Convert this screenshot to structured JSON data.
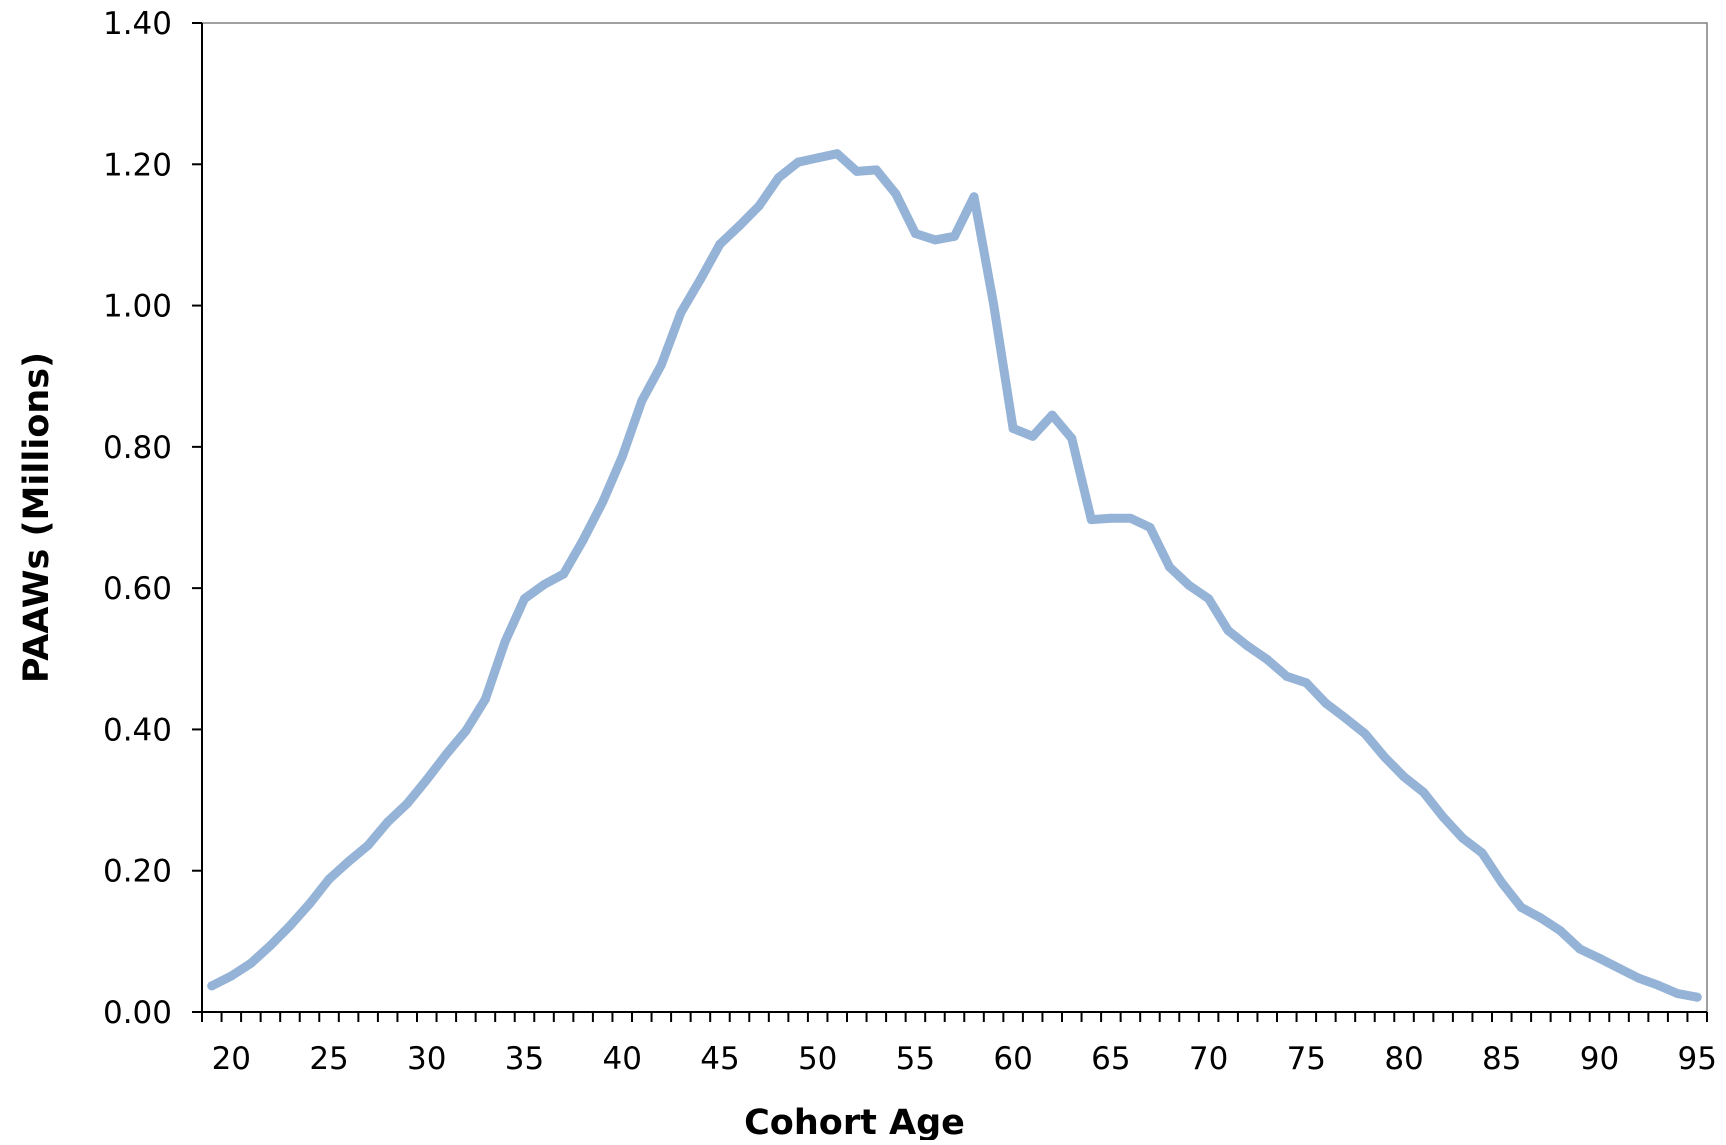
{
  "chart_data": {
    "type": "line",
    "title": "",
    "xlabel": "Cohort Age",
    "ylabel": "PAAWs (Millions)",
    "xlim": [
      18.5,
      95.5
    ],
    "ylim": [
      0,
      1.4
    ],
    "x_ticks": [
      20,
      25,
      30,
      35,
      40,
      45,
      50,
      55,
      60,
      65,
      70,
      75,
      80,
      85,
      90,
      95
    ],
    "y_ticks": [
      "0.00",
      "0.20",
      "0.40",
      "0.60",
      "0.80",
      "1.00",
      "1.20",
      "1.40"
    ],
    "grid": false,
    "legend": "none",
    "series": [
      {
        "color": "#95b3d7",
        "x": [
          19,
          20,
          21,
          22,
          23,
          24,
          25,
          26,
          27,
          28,
          29,
          30,
          31,
          32,
          33,
          34,
          35,
          36,
          37,
          38,
          39,
          40,
          41,
          42,
          43,
          44,
          45,
          46,
          47,
          48,
          49,
          50,
          51,
          52,
          53,
          54,
          55,
          56,
          57,
          58,
          59,
          60,
          61,
          62,
          63,
          64,
          65,
          66,
          67,
          68,
          69,
          70,
          71,
          72,
          73,
          74,
          75,
          76,
          77,
          78,
          79,
          80,
          81,
          82,
          83,
          84,
          85,
          86,
          87,
          88,
          89,
          90,
          91,
          92,
          93,
          94,
          95
        ],
        "values": [
          0.037,
          0.051,
          0.069,
          0.094,
          0.122,
          0.153,
          0.188,
          0.213,
          0.236,
          0.269,
          0.295,
          0.329,
          0.365,
          0.398,
          0.443,
          0.524,
          0.585,
          0.605,
          0.62,
          0.668,
          0.722,
          0.786,
          0.865,
          0.916,
          0.99,
          1.037,
          1.087,
          1.113,
          1.141,
          1.181,
          1.203,
          1.209,
          1.215,
          1.19,
          1.192,
          1.158,
          1.102,
          1.093,
          1.098,
          1.154,
          1.002,
          0.826,
          0.815,
          0.845,
          0.812,
          0.697,
          0.699,
          0.699,
          0.686,
          0.63,
          0.604,
          0.585,
          0.54,
          0.518,
          0.499,
          0.475,
          0.466,
          0.437,
          0.416,
          0.394,
          0.361,
          0.333,
          0.311,
          0.276,
          0.246,
          0.225,
          0.183,
          0.148,
          0.133,
          0.115,
          0.089,
          0.076,
          0.062,
          0.048,
          0.038,
          0.026,
          0.021
        ]
      }
    ]
  }
}
